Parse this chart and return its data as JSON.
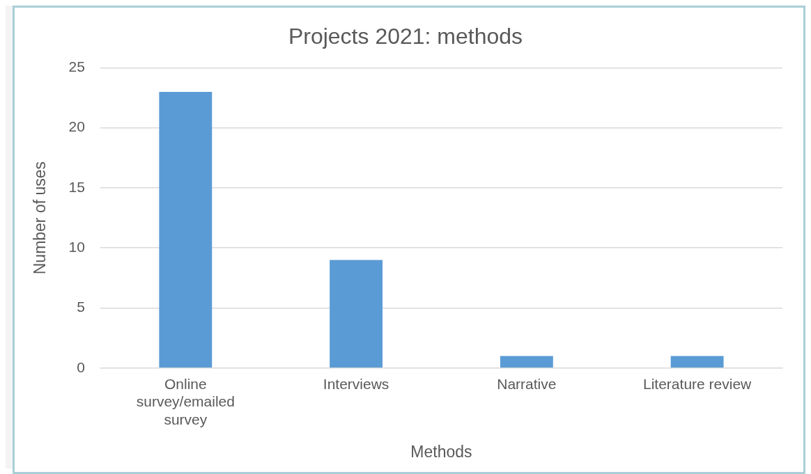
{
  "chart_data": {
    "type": "bar",
    "title": "Projects 2021: methods",
    "xlabel": "Methods",
    "ylabel": "Number of uses",
    "categories": [
      "Online survey/emailed survey",
      "Interviews",
      "Narrative",
      "Literature review"
    ],
    "values": [
      23,
      9,
      1,
      1
    ],
    "color": "#5b9bd5",
    "ylim": [
      0,
      25
    ],
    "yticks": [
      0,
      5,
      10,
      15,
      20,
      25
    ],
    "grid": "y",
    "legend": false
  }
}
